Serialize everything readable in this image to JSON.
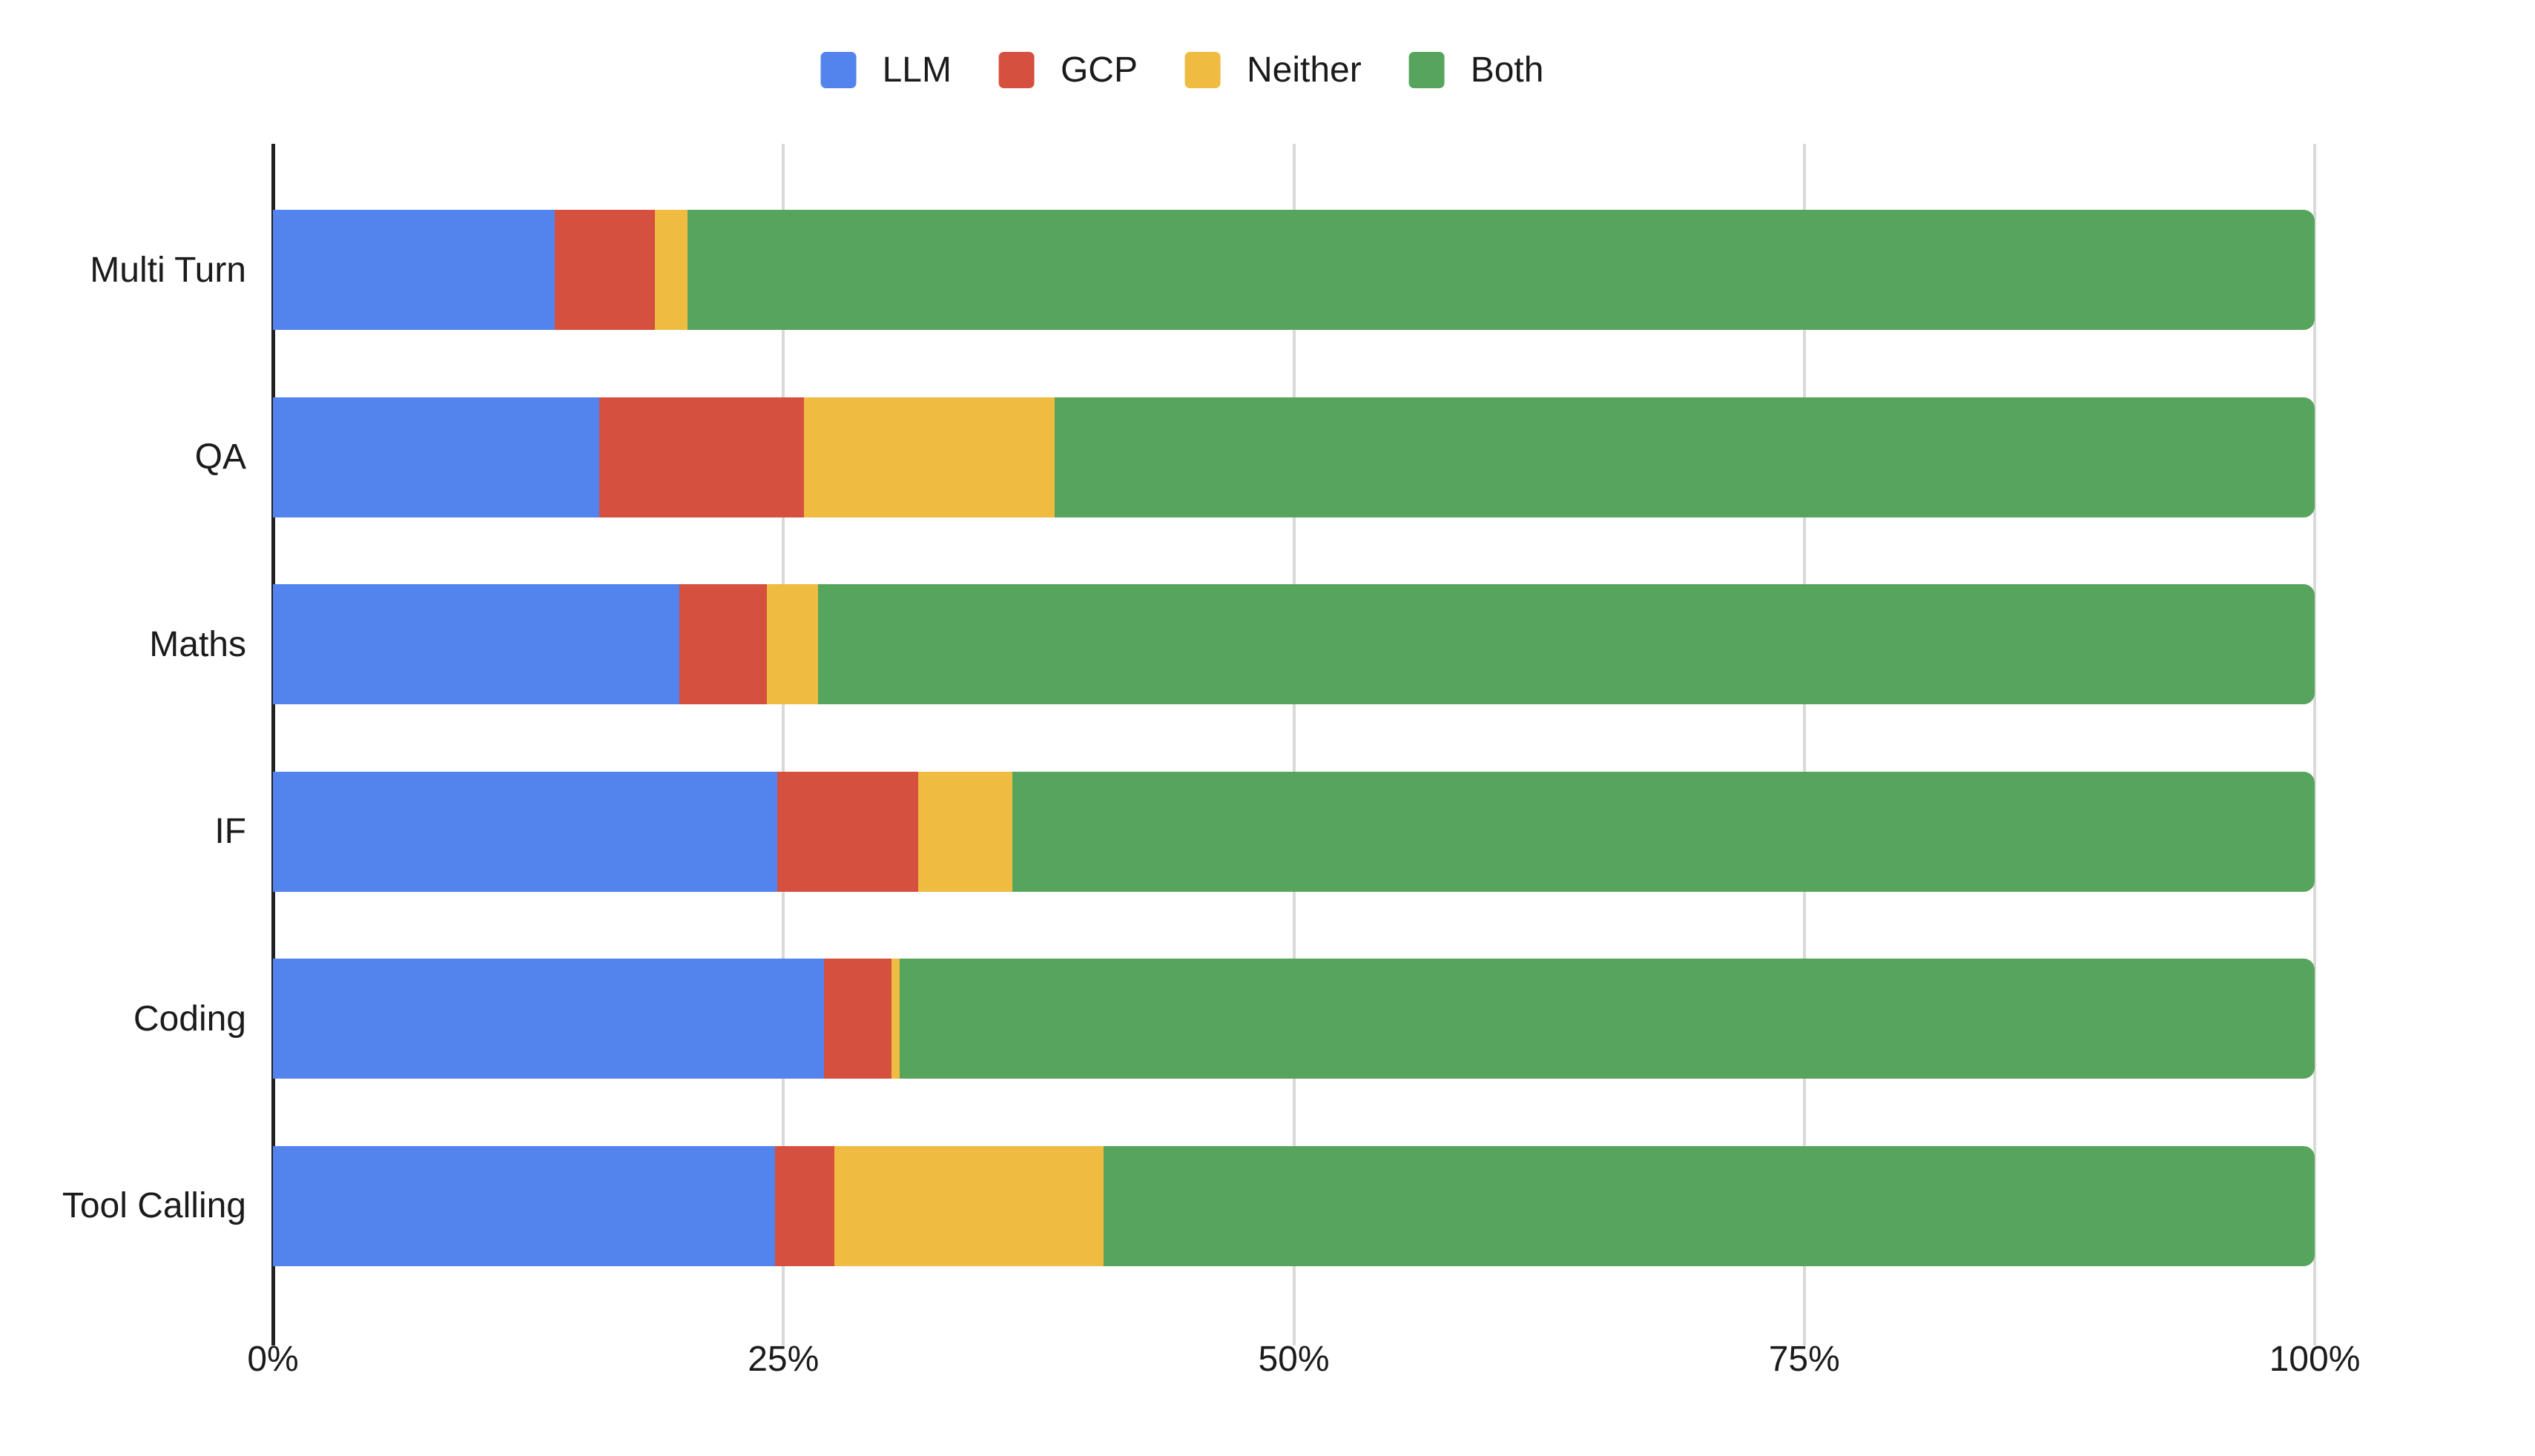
{
  "chart_data": {
    "type": "bar",
    "orientation": "horizontal",
    "stacked": true,
    "unit": "percent",
    "title": "",
    "categories": [
      "Multi Turn",
      "QA",
      "Maths",
      "IF",
      "Coding",
      "Tool Calling"
    ],
    "series": [
      {
        "name": "LLM",
        "color": "#5383EC",
        "values": [
          13.8,
          16.0,
          19.9,
          24.7,
          27.0,
          24.6
        ]
      },
      {
        "name": "GCP",
        "color": "#D6503F",
        "values": [
          4.9,
          10.0,
          4.3,
          6.9,
          3.3,
          2.9
        ]
      },
      {
        "name": "Neither",
        "color": "#EFBB41",
        "values": [
          1.6,
          12.3,
          2.5,
          4.6,
          0.4,
          13.2
        ]
      },
      {
        "name": "Both",
        "color": "#57A55D",
        "values": [
          79.7,
          61.7,
          73.3,
          63.8,
          69.3,
          59.3
        ]
      }
    ],
    "x_axis": {
      "tick_labels": [
        "0%",
        "25%",
        "50%",
        "75%",
        "100%"
      ],
      "tick_values": [
        0,
        25,
        50,
        75,
        100
      ],
      "range": [
        0,
        100
      ]
    },
    "legend": {
      "position": "top",
      "entries": [
        "LLM",
        "GCP",
        "Neither",
        "Both"
      ]
    },
    "grid": true,
    "colors": {
      "axis_line": "#212121",
      "gridline": "#d9d9d9",
      "text": "#1b1b1b",
      "background": "#ffffff"
    }
  }
}
